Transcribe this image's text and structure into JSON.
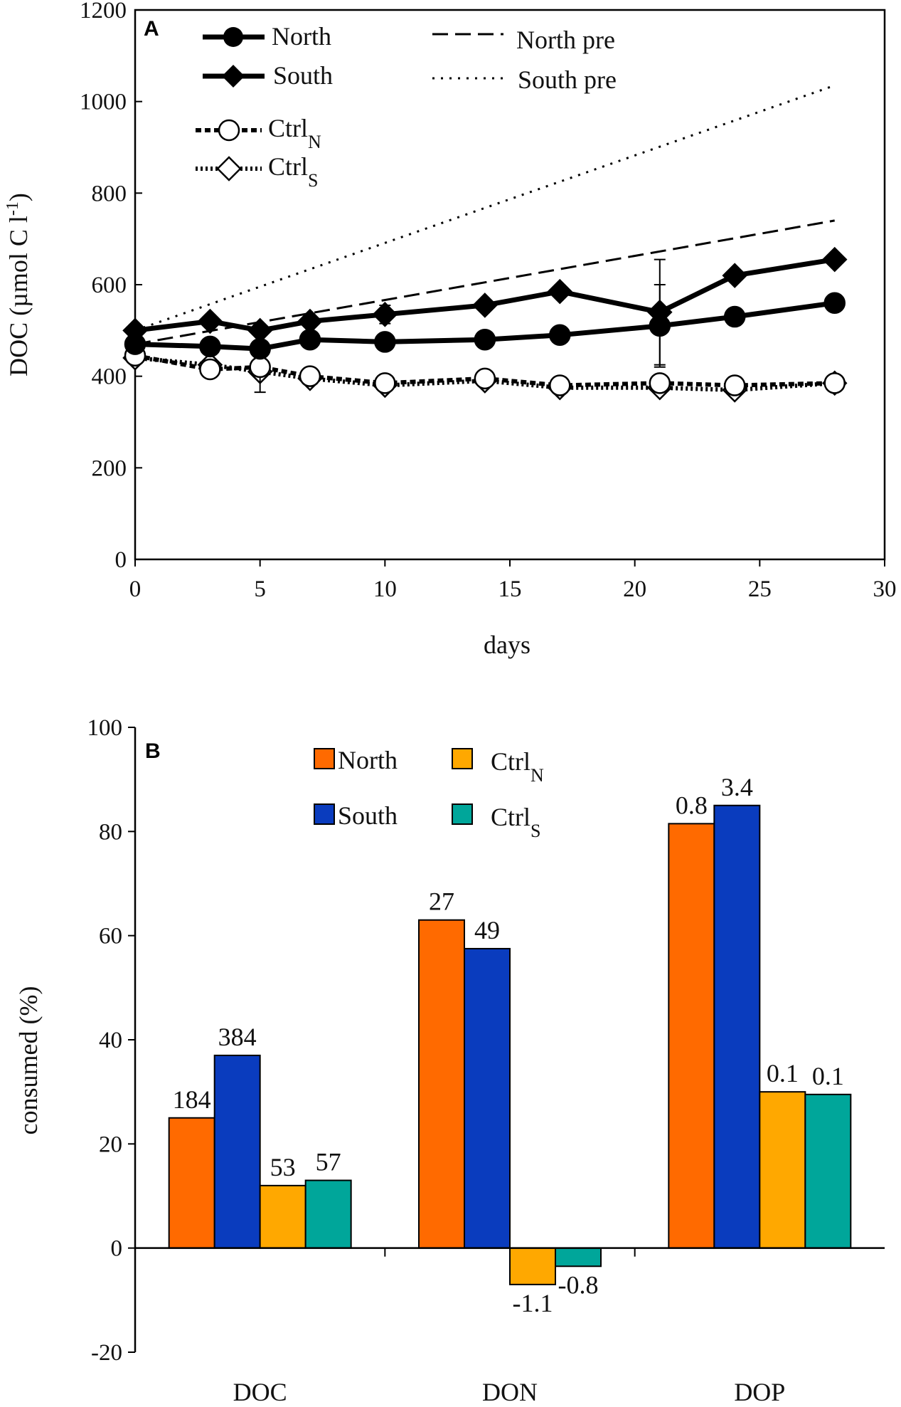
{
  "chart_data": [
    {
      "type": "line",
      "panel_label": "A",
      "title": "",
      "xlabel": "days",
      "ylabel_main": "DOC (µmol C l",
      "ylabel_sup": "-1",
      "ylabel_close": ")",
      "xlim": [
        0,
        30
      ],
      "ylim": [
        0,
        1200
      ],
      "xticks": [
        0,
        5,
        10,
        15,
        20,
        25,
        30
      ],
      "yticks": [
        0,
        200,
        400,
        600,
        800,
        1000,
        1200
      ],
      "series": [
        {
          "name": "North",
          "style": "solid",
          "marker": "circle-filled",
          "x": [
            0,
            3,
            5,
            7,
            10,
            14,
            17,
            21,
            24,
            28
          ],
          "y": [
            470,
            465,
            460,
            480,
            475,
            480,
            490,
            510,
            530,
            560
          ],
          "err": [
            0,
            0,
            0,
            0,
            0,
            0,
            0,
            90,
            0,
            0
          ]
        },
        {
          "name": "South",
          "style": "solid",
          "marker": "diamond-filled",
          "x": [
            0,
            3,
            5,
            7,
            10,
            14,
            17,
            21,
            24,
            28
          ],
          "y": [
            500,
            520,
            500,
            520,
            535,
            555,
            585,
            540,
            620,
            655
          ],
          "err": [
            0,
            0,
            0,
            0,
            20,
            0,
            0,
            115,
            0,
            0
          ]
        },
        {
          "name": "Ctrl",
          "sub": "N",
          "style": "dashed-bold",
          "marker": "circle-open",
          "x": [
            0,
            3,
            5,
            7,
            10,
            14,
            17,
            21,
            24,
            28
          ],
          "y": [
            445,
            415,
            420,
            400,
            385,
            395,
            380,
            385,
            380,
            385
          ],
          "err": [
            0,
            0,
            55,
            0,
            0,
            0,
            0,
            0,
            0,
            0
          ]
        },
        {
          "name": "Ctrl",
          "sub": "S",
          "style": "dotted-bold",
          "marker": "diamond-open",
          "x": [
            0,
            3,
            5,
            7,
            10,
            14,
            17,
            21,
            24,
            28
          ],
          "y": [
            440,
            425,
            410,
            395,
            380,
            390,
            375,
            375,
            370,
            385
          ],
          "err": [
            0,
            0,
            0,
            0,
            0,
            0,
            0,
            0,
            0,
            0
          ]
        },
        {
          "name": "North pre",
          "style": "dashed",
          "marker": "none",
          "x": [
            0,
            28
          ],
          "y": [
            470,
            740
          ]
        },
        {
          "name": "South pre",
          "style": "dotted",
          "marker": "none",
          "x": [
            0,
            28
          ],
          "y": [
            500,
            1035
          ]
        }
      ]
    },
    {
      "type": "bar",
      "panel_label": "B",
      "title": "",
      "xlabel": "",
      "ylabel": "consumed (%)",
      "ylim": [
        -20,
        100
      ],
      "yticks": [
        -20,
        0,
        20,
        40,
        60,
        80,
        100
      ],
      "categories": [
        "DOC",
        "DON",
        "DOP"
      ],
      "series": [
        {
          "name": "North",
          "sub": "",
          "color": "#FF6A00",
          "values": [
            25,
            63,
            81.5
          ],
          "labels": [
            "184",
            "27",
            "0.8"
          ]
        },
        {
          "name": "South",
          "sub": "",
          "color": "#0A3CBE",
          "values": [
            37,
            57.5,
            85
          ],
          "labels": [
            "384",
            "49",
            "3.4"
          ]
        },
        {
          "name": "Ctrl",
          "sub": "N",
          "color": "#FFA800",
          "values": [
            12,
            -7,
            30
          ],
          "labels": [
            "53",
            "-1.1",
            "0.1"
          ]
        },
        {
          "name": "Ctrl",
          "sub": "S",
          "color": "#00A69A",
          "values": [
            13,
            -3.5,
            29.5
          ],
          "labels": [
            "57",
            "-0.8",
            "0.1"
          ]
        }
      ]
    }
  ]
}
